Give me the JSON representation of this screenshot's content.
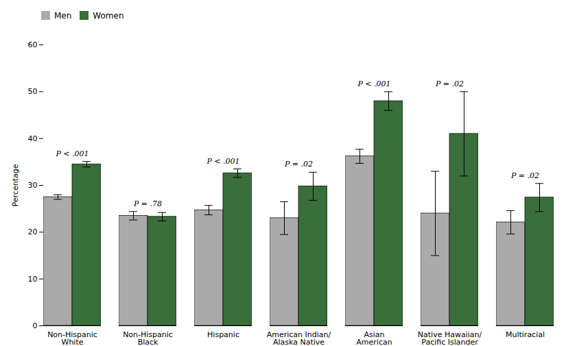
{
  "chart_data": {
    "type": "bar",
    "categories": [
      "Non-Hispanic\nWhite",
      "Non-Hispanic\nBlack",
      "Hispanic",
      "American Indian/\nAlaska Native",
      "Asian\nAmerican",
      "Native Hawaiian/\nPacific Islander",
      "Multiracial"
    ],
    "series": [
      {
        "name": "Men",
        "color": "#aaaaaa",
        "values": [
          27.5,
          23.5,
          24.7,
          23.0,
          36.2,
          24.0,
          22.1
        ],
        "errors": [
          0.5,
          0.9,
          1.0,
          3.5,
          1.5,
          9.0,
          2.5
        ]
      },
      {
        "name": "Women",
        "color": "#3a6e3a",
        "values": [
          34.5,
          23.3,
          32.6,
          29.8,
          48.0,
          41.0,
          27.4
        ],
        "errors": [
          0.6,
          0.9,
          0.9,
          3.0,
          2.0,
          9.0,
          3.0
        ]
      }
    ],
    "annotations": [
      "P < .001",
      "P = .78",
      "P < .001",
      "P = .02",
      "P < .001",
      "P = .02",
      "P = .02"
    ],
    "ylabel": "Percentage",
    "ylim": [
      0,
      60
    ],
    "yticks": [
      0,
      10,
      20,
      30,
      40,
      50,
      60
    ],
    "grid": false,
    "legend": "upper left"
  }
}
